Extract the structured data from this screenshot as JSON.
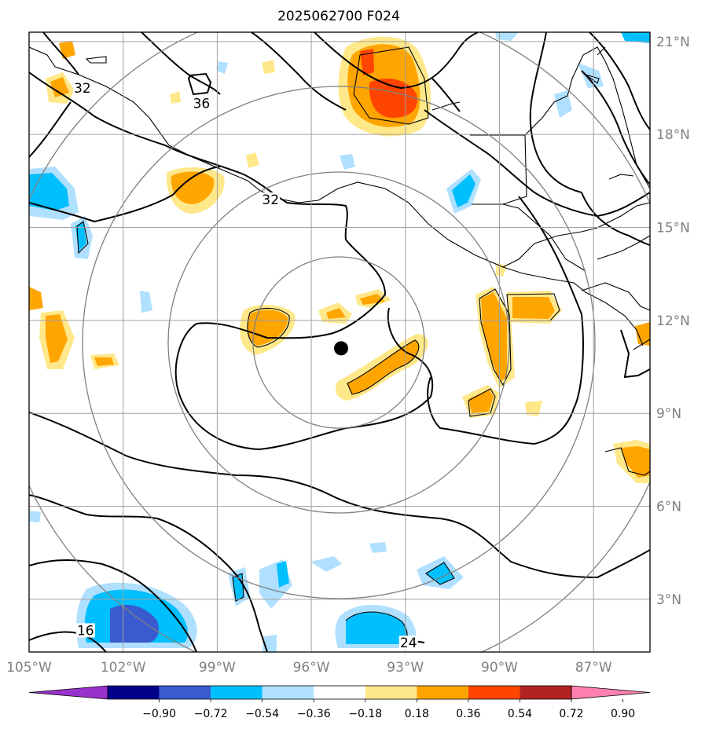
{
  "title": "2025062700 F024",
  "map": {
    "lon_range": [
      -105,
      -85.2
    ],
    "lat_range": [
      1.3,
      21.3
    ],
    "lon_ticks": [
      {
        "lon": -105,
        "label": "105°W"
      },
      {
        "lon": -102,
        "label": "102°W"
      },
      {
        "lon": -99,
        "label": "99°W"
      },
      {
        "lon": -96,
        "label": "96°W"
      },
      {
        "lon": -93,
        "label": "93°W"
      },
      {
        "lon": -90,
        "label": "90°W"
      },
      {
        "lon": -87,
        "label": "87°W"
      }
    ],
    "lat_ticks": [
      {
        "lat": 3,
        "label": "3°N"
      },
      {
        "lat": 6,
        "label": "6°N"
      },
      {
        "lat": 9,
        "label": "9°N"
      },
      {
        "lat": 12,
        "label": "12°N"
      },
      {
        "lat": 15,
        "label": "15°N"
      },
      {
        "lat": 18,
        "label": "18°N"
      },
      {
        "lat": 21,
        "label": "21°N"
      }
    ],
    "center_marker": {
      "lon": -95.05,
      "lat": 11.1
    },
    "range_rings_deg": [
      2.7,
      5.4,
      8.1,
      10.8
    ],
    "contour_labels": [
      {
        "text": "32",
        "lon": -103.3,
        "lat": 19.5
      },
      {
        "text": "36",
        "lon": -99.5,
        "lat": 19.0
      },
      {
        "text": "32",
        "lon": -97.3,
        "lat": 15.9
      },
      {
        "text": "16",
        "lon": -103.2,
        "lat": 2.0
      },
      {
        "text": "24",
        "lon": -92.9,
        "lat": 1.6
      }
    ]
  },
  "colorbar": {
    "colors": [
      "#9932cc",
      "#00008b",
      "#3a5bcf",
      "#00bfff",
      "#b0e0ff",
      "#ffffff",
      "#ffe88a",
      "#ffa500",
      "#ff4500",
      "#b22222",
      "#ff7fb0"
    ],
    "tick_labels": [
      "−0.90",
      "−0.72",
      "−0.54",
      "−0.36",
      "−0.18",
      "0.18",
      "0.36",
      "0.54",
      "0.72",
      "0.90"
    ],
    "extend": "both"
  }
}
